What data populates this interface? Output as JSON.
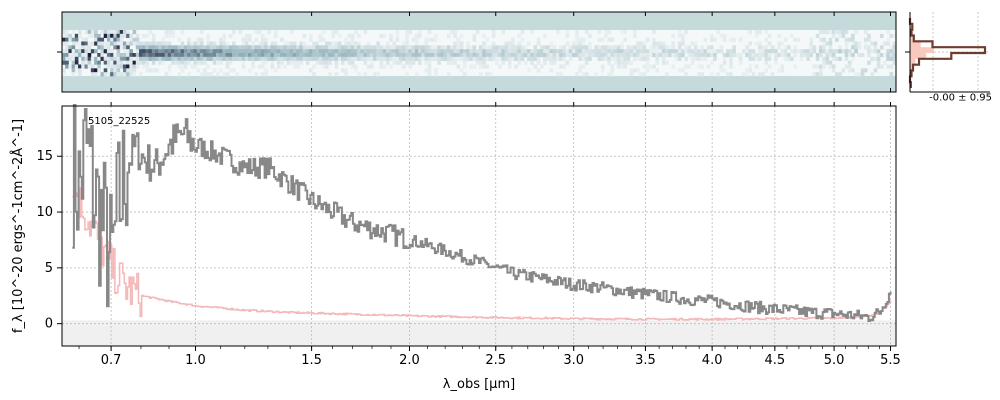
{
  "chart_data": [
    {
      "type": "heatmap",
      "panel": "2d-spectrum",
      "colormap": "bone_r",
      "background_color": "#c5dbdb",
      "x_range": [
        0.55,
        5.55
      ],
      "trace_center_row_fraction": 0.5
    },
    {
      "type": "line",
      "panel": "spatial-profile",
      "annotation": "-0.00 ± 0.95",
      "profile_color": "#6e3b2f",
      "model_fill_color": "#f9c9c0",
      "profile": [
        0.0,
        0.03,
        0.02,
        0.05,
        0.3,
        1.0,
        0.55,
        0.12,
        0.04,
        0.02,
        0.0,
        0.01
      ]
    },
    {
      "type": "line",
      "panel": "1d-spectrum",
      "title": "",
      "label": "5105_22525",
      "xlabel": "λ_obs [μm]",
      "ylabel": "f_λ [10^-20 ergs^-1cm^-2Å^-1]",
      "x_scale": "sqrt",
      "xlim": [
        0.55,
        5.55
      ],
      "ylim": [
        -2,
        19.5
      ],
      "grid": true,
      "xticks": [
        0.7,
        1.0,
        1.5,
        2.0,
        2.5,
        3.0,
        3.5,
        4.0,
        4.5,
        5.0,
        5.5
      ],
      "xtick_labels": [
        "0.7",
        "1.0",
        "1.5",
        "2.0",
        "2.5",
        "3.0",
        "3.5",
        "4.0",
        "4.5",
        "5.0",
        "5.5"
      ],
      "yticks": [
        0,
        5,
        10,
        15
      ],
      "ytick_labels": [
        "0",
        "5",
        "10",
        "15"
      ],
      "series": [
        {
          "role": "flux",
          "color": "#888888",
          "x": [
            0.58,
            0.6,
            0.62,
            0.65,
            0.68,
            0.7,
            0.72,
            0.75,
            0.78,
            0.8,
            0.85,
            0.9,
            0.95,
            1.0,
            1.1,
            1.2,
            1.3,
            1.4,
            1.5,
            1.6,
            1.7,
            1.8,
            2.0,
            2.2,
            2.4,
            2.6,
            2.8,
            3.0,
            3.2,
            3.4,
            3.6,
            3.8,
            4.0,
            4.2,
            4.4,
            4.6,
            4.8,
            5.0,
            5.2,
            5.3,
            5.4,
            5.45,
            5.5
          ],
          "y": [
            14,
            12,
            16,
            11,
            8,
            5,
            10,
            14,
            16,
            15,
            14,
            16,
            17,
            16,
            15,
            14,
            14,
            12.5,
            11,
            10,
            9,
            8.5,
            7.5,
            6.5,
            5.5,
            4.5,
            4.0,
            3.5,
            3.2,
            2.8,
            2.5,
            2.2,
            2.0,
            1.7,
            1.4,
            1.2,
            1.0,
            0.9,
            0.7,
            0.6,
            1.0,
            2.0,
            3.0
          ]
        },
        {
          "role": "error",
          "color": "#f4b8b8",
          "x": [
            0.58,
            0.6,
            0.65,
            0.7,
            0.75,
            0.8,
            0.9,
            1.0,
            1.2,
            1.4,
            1.6,
            1.8,
            2.0,
            2.5,
            3.0,
            3.5,
            4.0,
            4.5,
            5.0,
            5.3,
            5.4,
            5.5
          ],
          "y": [
            13,
            11,
            8,
            5,
            3.2,
            2.5,
            2.0,
            1.6,
            1.2,
            1.0,
            0.9,
            0.8,
            0.7,
            0.55,
            0.45,
            0.4,
            0.4,
            0.45,
            0.5,
            0.7,
            1.0,
            2.0
          ]
        }
      ]
    }
  ]
}
